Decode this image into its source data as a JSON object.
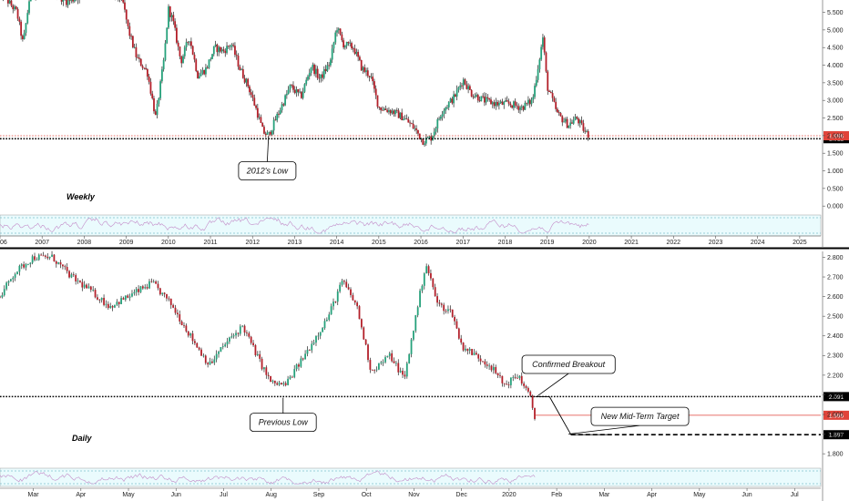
{
  "chart_data": [
    {
      "panel": "weekly",
      "type": "candlestick",
      "label": "Weekly",
      "x_ticks": [
        "2006",
        "2007",
        "2008",
        "2009",
        "2010",
        "2011",
        "2012",
        "2013",
        "2014",
        "2015",
        "2016",
        "2017",
        "2018",
        "2019",
        "2020",
        "2021",
        "2022",
        "2023",
        "2024",
        "2025"
      ],
      "x_range": [
        2006.0,
        2025.5
      ],
      "y_ticks": [
        "5.500",
        "5.000",
        "4.500",
        "4.000",
        "3.500",
        "3.000",
        "2.500",
        "2.000",
        "1.500",
        "1.000",
        "0.500",
        "0.000"
      ],
      "ylim": [
        -0.15,
        5.85
      ],
      "price_path": [
        [
          2006.0,
          6.1
        ],
        [
          2006.4,
          5.5
        ],
        [
          2006.55,
          4.6
        ],
        [
          2006.7,
          5.9
        ],
        [
          2007.0,
          6.3
        ],
        [
          2007.6,
          5.8
        ],
        [
          2008.3,
          6.2
        ],
        [
          2008.9,
          5.9
        ],
        [
          2009.05,
          5.0
        ],
        [
          2009.25,
          4.2
        ],
        [
          2009.5,
          3.8
        ],
        [
          2009.7,
          2.5
        ],
        [
          2009.9,
          4.2
        ],
        [
          2010.0,
          5.6
        ],
        [
          2010.1,
          5.3
        ],
        [
          2010.3,
          4.1
        ],
        [
          2010.5,
          4.8
        ],
        [
          2010.7,
          3.7
        ],
        [
          2010.9,
          3.9
        ],
        [
          2011.1,
          4.5
        ],
        [
          2011.3,
          4.4
        ],
        [
          2011.5,
          4.6
        ],
        [
          2011.7,
          3.9
        ],
        [
          2011.9,
          3.4
        ],
        [
          2012.1,
          2.7
        ],
        [
          2012.25,
          2.1
        ],
        [
          2012.38,
          2.0
        ],
        [
          2012.6,
          2.6
        ],
        [
          2012.9,
          3.4
        ],
        [
          2013.15,
          3.1
        ],
        [
          2013.4,
          4.0
        ],
        [
          2013.6,
          3.6
        ],
        [
          2013.85,
          4.1
        ],
        [
          2014.0,
          5.1
        ],
        [
          2014.15,
          4.6
        ],
        [
          2014.4,
          4.5
        ],
        [
          2014.6,
          3.9
        ],
        [
          2014.8,
          3.7
        ],
        [
          2015.0,
          2.8
        ],
        [
          2015.3,
          2.7
        ],
        [
          2015.6,
          2.5
        ],
        [
          2015.85,
          2.2
        ],
        [
          2016.05,
          1.85
        ],
        [
          2016.25,
          1.95
        ],
        [
          2016.5,
          2.7
        ],
        [
          2016.8,
          3.1
        ],
        [
          2017.0,
          3.6
        ],
        [
          2017.2,
          3.2
        ],
        [
          2017.5,
          3.0
        ],
        [
          2017.8,
          2.9
        ],
        [
          2018.1,
          2.9
        ],
        [
          2018.4,
          2.8
        ],
        [
          2018.65,
          3.0
        ],
        [
          2018.9,
          4.8
        ],
        [
          2019.0,
          3.4
        ],
        [
          2019.25,
          2.6
        ],
        [
          2019.5,
          2.3
        ],
        [
          2019.7,
          2.5
        ],
        [
          2019.9,
          2.1
        ],
        [
          2020.0,
          2.0
        ]
      ],
      "levels": [
        {
          "value": 1.912,
          "tag": "1.912",
          "style": "dotted",
          "color": "#000000"
        },
        {
          "value": 1.996,
          "tag": "1.996",
          "style": "dotted",
          "color": "#e0443a"
        }
      ],
      "annotations": [
        {
          "text": "2012's Low",
          "x": 2012.35,
          "y": 1.0,
          "pointer": [
            2012.38,
            1.99
          ]
        }
      ],
      "oscillator_band": [
        30,
        70
      ]
    },
    {
      "panel": "daily",
      "type": "candlestick",
      "label": "Daily",
      "x_ticks": [
        "Mar",
        "Apr",
        "May",
        "Jun",
        "Jul",
        "Aug",
        "Sep",
        "Oct",
        "Nov",
        "Dec",
        "2020",
        "Feb",
        "Mar",
        "Apr",
        "May",
        "Jun",
        "Jul"
      ],
      "x_positions": [
        2,
        3,
        4,
        5,
        6,
        7,
        8,
        9,
        10,
        11,
        12,
        13,
        14,
        15,
        16,
        17,
        18
      ],
      "x_range": [
        1.3,
        18.55
      ],
      "y_ticks": [
        "2.800",
        "2.700",
        "2.600",
        "2.500",
        "2.400",
        "2.300",
        "2.200",
        "2.100",
        "2.000",
        "1.900",
        "1.800"
      ],
      "ylim": [
        1.745,
        2.83
      ],
      "price_path": [
        [
          1.3,
          2.6
        ],
        [
          1.6,
          2.72
        ],
        [
          2.0,
          2.8
        ],
        [
          2.4,
          2.8
        ],
        [
          2.8,
          2.7
        ],
        [
          3.2,
          2.63
        ],
        [
          3.6,
          2.55
        ],
        [
          4.0,
          2.6
        ],
        [
          4.5,
          2.67
        ],
        [
          4.9,
          2.56
        ],
        [
          5.3,
          2.4
        ],
        [
          5.7,
          2.25
        ],
        [
          6.0,
          2.35
        ],
        [
          6.4,
          2.45
        ],
        [
          6.8,
          2.25
        ],
        [
          7.0,
          2.16
        ],
        [
          7.3,
          2.15
        ],
        [
          7.7,
          2.3
        ],
        [
          8.2,
          2.5
        ],
        [
          8.5,
          2.68
        ],
        [
          8.8,
          2.55
        ],
        [
          9.1,
          2.22
        ],
        [
          9.5,
          2.3
        ],
        [
          9.8,
          2.18
        ],
        [
          10.0,
          2.45
        ],
        [
          10.25,
          2.77
        ],
        [
          10.5,
          2.56
        ],
        [
          10.8,
          2.52
        ],
        [
          11.0,
          2.35
        ],
        [
          11.3,
          2.3
        ],
        [
          11.6,
          2.25
        ],
        [
          11.9,
          2.15
        ],
        [
          12.2,
          2.2
        ],
        [
          12.45,
          2.08
        ],
        [
          12.55,
          1.97
        ]
      ],
      "levels": [
        {
          "value": 2.091,
          "tag": "2.091",
          "style": "dotted",
          "color": "#000000"
        },
        {
          "value": 1.996,
          "tag": "1.996",
          "style": "solid",
          "color": "#e0443a"
        },
        {
          "value": 1.897,
          "tag": "1.897",
          "style": "dashed",
          "color": "#000000"
        }
      ],
      "projection": [
        [
          12.55,
          2.09
        ],
        [
          12.85,
          2.09
        ],
        [
          13.3,
          1.897
        ],
        [
          14.1,
          1.897
        ]
      ],
      "annotations": [
        {
          "text": "Confirmed Breakout",
          "x": 13.25,
          "y": 2.255,
          "pointer": [
            12.6,
            2.095
          ]
        },
        {
          "text": "Previous Low",
          "x": 7.25,
          "y": 1.96,
          "pointer": [
            7.25,
            2.085
          ]
        },
        {
          "text": "New Mid-Term Target",
          "x": 14.75,
          "y": 1.99,
          "pointer": [
            13.25,
            1.9
          ]
        }
      ],
      "oscillator_band": [
        30,
        70
      ]
    }
  ]
}
